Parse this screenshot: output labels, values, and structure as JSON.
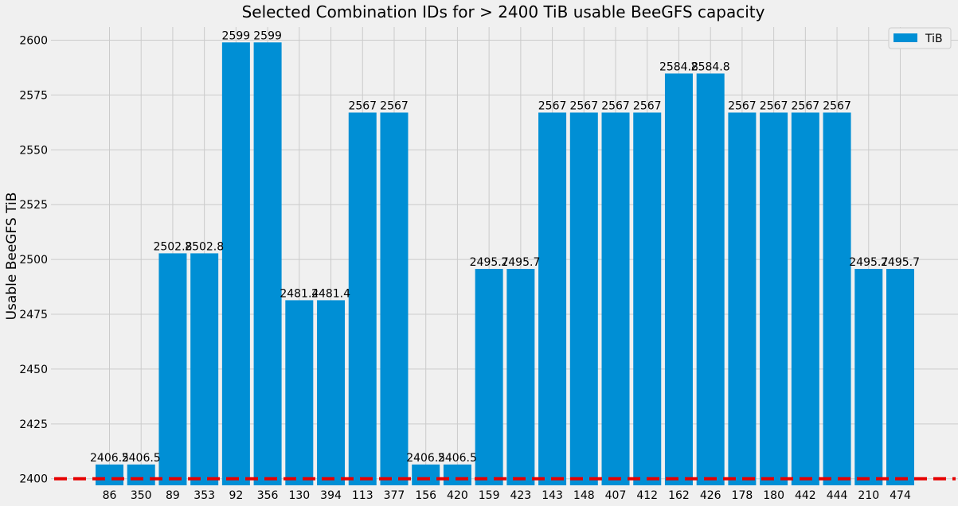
{
  "chart_data": {
    "type": "bar",
    "title": "Selected Combination IDs for > 2400 TiB usable BeeGFS capacity",
    "xlabel": "",
    "ylabel": "Usable BeeGFS TiB",
    "categories": [
      "86",
      "350",
      "89",
      "353",
      "92",
      "356",
      "130",
      "394",
      "113",
      "377",
      "156",
      "420",
      "159",
      "423",
      "143",
      "148",
      "407",
      "412",
      "162",
      "426",
      "178",
      "180",
      "442",
      "444",
      "210",
      "474"
    ],
    "series": [
      {
        "name": "TiB",
        "color": "#008fd5",
        "values": [
          2406.5,
          2406.5,
          2502.8,
          2502.8,
          2599,
          2599,
          2481.4,
          2481.4,
          2567,
          2567,
          2406.5,
          2406.5,
          2495.7,
          2495.7,
          2567,
          2567,
          2567,
          2567,
          2584.8,
          2584.8,
          2567,
          2567,
          2567,
          2567,
          2495.7,
          2495.7
        ],
        "labels": [
          "2406.5",
          "2406.5",
          "2502.8",
          "2502.8",
          "2599",
          "2599",
          "2481.4",
          "2481.4",
          "2567",
          "2567",
          "2406.5",
          "2406.5",
          "2495.7",
          "2495.7",
          "2567",
          "2567",
          "2567",
          "2567",
          "2584.8",
          "2584.8",
          "2567",
          "2567",
          "2567",
          "2567",
          "2495.7",
          "2495.7"
        ]
      }
    ],
    "ylim": [
      2397,
      2606
    ],
    "yticks": [
      2400,
      2425,
      2450,
      2475,
      2500,
      2525,
      2550,
      2575,
      2600
    ],
    "reference_line": {
      "y": 2400,
      "color": "#e60000",
      "style": "dashed"
    },
    "grid": true,
    "legend_position": "top-right",
    "background_color": "#f0f0f0",
    "grid_color": "#cbcbcb"
  }
}
